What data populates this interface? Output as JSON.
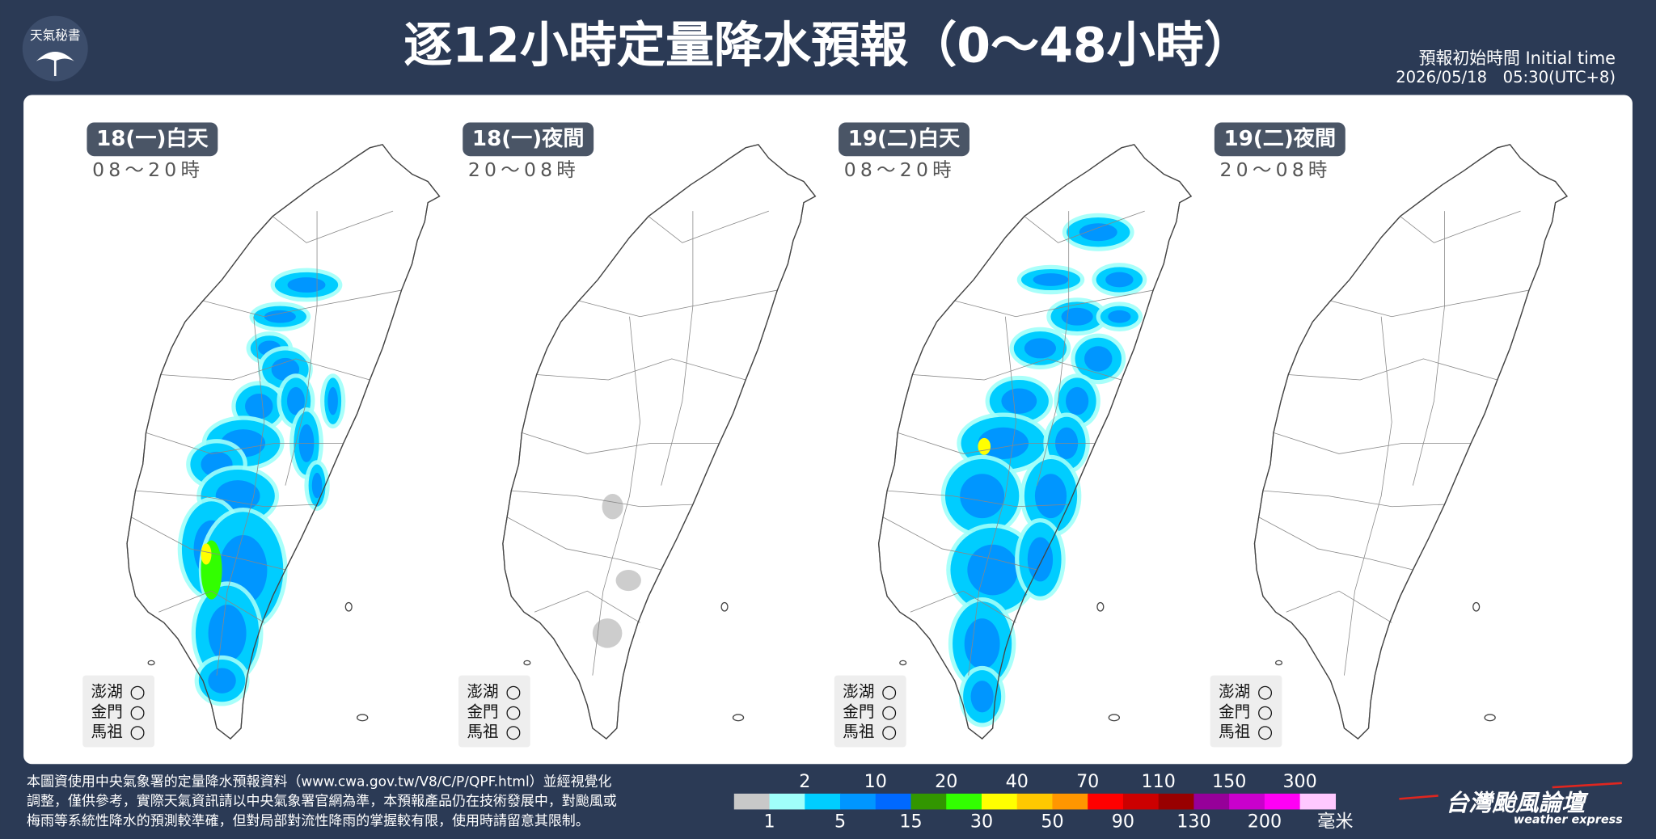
{
  "header": {
    "logo_text": "天氣秘書",
    "title": "逐12小時定量降水預報（0～48小時）",
    "initial_time_label": "預報初始時間 Initial time",
    "initial_time": "2026/05/18　05:30(UTC+8)"
  },
  "panels": [
    {
      "day": "18(一)白天",
      "hours": "08～20時",
      "islands": [
        {
          "name": "澎湖",
          "symbol": "○"
        },
        {
          "name": "金門",
          "symbol": "○"
        },
        {
          "name": "馬祖",
          "symbol": "○"
        }
      ]
    },
    {
      "day": "18(一)夜間",
      "hours": "20～08時",
      "islands": [
        {
          "name": "澎湖",
          "symbol": "○"
        },
        {
          "name": "金門",
          "symbol": "○"
        },
        {
          "name": "馬祖",
          "symbol": "○"
        }
      ]
    },
    {
      "day": "19(二)白天",
      "hours": "08～20時",
      "islands": [
        {
          "name": "澎湖",
          "symbol": "○"
        },
        {
          "name": "金門",
          "symbol": "○"
        },
        {
          "name": "馬祖",
          "symbol": "○"
        }
      ]
    },
    {
      "day": "19(二)夜間",
      "hours": "20～08時",
      "islands": [
        {
          "name": "澎湖",
          "symbol": "○"
        },
        {
          "name": "金門",
          "symbol": "○"
        },
        {
          "name": "馬祖",
          "symbol": "○"
        }
      ]
    }
  ],
  "footer": {
    "note": [
      "本圖資使用中央氣象署的定量降水預報資料（www.cwa.gov.tw/V8/C/P/QPF.html）並經視覺化",
      "調整，僅供參考，實際天氣資訊請以中央氣象署官網為準，本預報產品仍在技術發展中，對颱風或",
      "梅雨等系統性降水的預測較準確，但對局部對流性降雨的掌握較有限，使用時請留意其限制。"
    ],
    "legend": {
      "colors": [
        "#c8c8c8",
        "#a0fffa",
        "#00cdff",
        "#0096ff",
        "#0069ff",
        "#329600",
        "#32ff00",
        "#ffff00",
        "#ffc800",
        "#ff9600",
        "#ff0000",
        "#cc0000",
        "#990000",
        "#960099",
        "#c900cc",
        "#ff00f5",
        "#ffc8ff"
      ],
      "top_labels": [
        "2",
        "10",
        "20",
        "40",
        "70",
        "110",
        "150",
        "300"
      ],
      "bottom_labels": [
        "1",
        "5",
        "15",
        "30",
        "50",
        "90",
        "130",
        "200"
      ],
      "unit": "毫米"
    },
    "brand": "台灣颱風論壇",
    "brand_en": "weather express"
  }
}
